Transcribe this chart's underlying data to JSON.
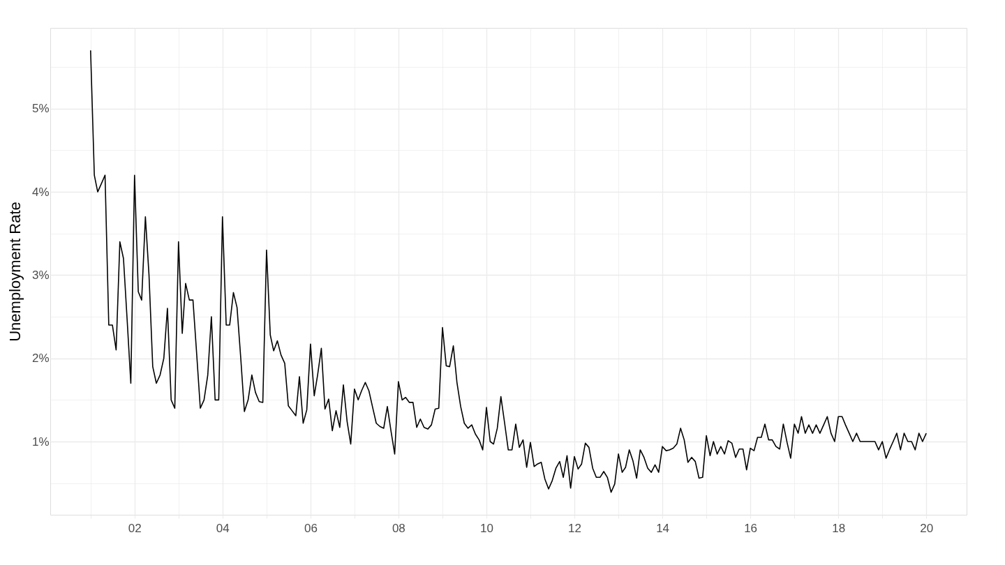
{
  "chart_data": {
    "type": "line",
    "ylabel": "Unemployment Rate",
    "x": [
      "2001-01",
      "2001-02",
      "2001-03",
      "2001-04",
      "2001-05",
      "2001-06",
      "2001-07",
      "2001-08",
      "2001-09",
      "2001-10",
      "2001-11",
      "2001-12",
      "2002-01",
      "2002-02",
      "2002-03",
      "2002-04",
      "2002-05",
      "2002-06",
      "2002-07",
      "2002-08",
      "2002-09",
      "2002-10",
      "2002-11",
      "2002-12",
      "2003-01",
      "2003-02",
      "2003-03",
      "2003-04",
      "2003-05",
      "2003-06",
      "2003-07",
      "2003-08",
      "2003-09",
      "2003-10",
      "2003-11",
      "2003-12",
      "2004-01",
      "2004-02",
      "2004-03",
      "2004-04",
      "2004-05",
      "2004-06",
      "2004-07",
      "2004-08",
      "2004-09",
      "2004-10",
      "2004-11",
      "2004-12",
      "2005-01",
      "2005-02",
      "2005-03",
      "2005-04",
      "2005-05",
      "2005-06",
      "2005-07",
      "2005-08",
      "2005-09",
      "2005-10",
      "2005-11",
      "2005-12",
      "2006-01",
      "2006-02",
      "2006-03",
      "2006-04",
      "2006-05",
      "2006-06",
      "2006-07",
      "2006-08",
      "2006-09",
      "2006-10",
      "2006-11",
      "2006-12",
      "2007-01",
      "2007-02",
      "2007-03",
      "2007-04",
      "2007-05",
      "2007-06",
      "2007-07",
      "2007-08",
      "2007-09",
      "2007-10",
      "2007-11",
      "2007-12",
      "2008-01",
      "2008-02",
      "2008-03",
      "2008-04",
      "2008-05",
      "2008-06",
      "2008-07",
      "2008-08",
      "2008-09",
      "2008-10",
      "2008-11",
      "2008-12",
      "2009-01",
      "2009-02",
      "2009-03",
      "2009-04",
      "2009-05",
      "2009-06",
      "2009-07",
      "2009-08",
      "2009-09",
      "2009-10",
      "2009-11",
      "2009-12",
      "2010-01",
      "2010-02",
      "2010-03",
      "2010-04",
      "2010-05",
      "2010-06",
      "2010-07",
      "2010-08",
      "2010-09",
      "2010-10",
      "2010-11",
      "2010-12",
      "2011-01",
      "2011-02",
      "2011-03",
      "2011-04",
      "2011-05",
      "2011-06",
      "2011-07",
      "2011-08",
      "2011-09",
      "2011-10",
      "2011-11",
      "2011-12",
      "2012-01",
      "2012-02",
      "2012-03",
      "2012-04",
      "2012-05",
      "2012-06",
      "2012-07",
      "2012-08",
      "2012-09",
      "2012-10",
      "2012-11",
      "2012-12",
      "2013-01",
      "2013-02",
      "2013-03",
      "2013-04",
      "2013-05",
      "2013-06",
      "2013-07",
      "2013-08",
      "2013-09",
      "2013-10",
      "2013-11",
      "2013-12",
      "2014-01",
      "2014-02",
      "2014-03",
      "2014-04",
      "2014-05",
      "2014-06",
      "2014-07",
      "2014-08",
      "2014-09",
      "2014-10",
      "2014-11",
      "2014-12",
      "2015-01",
      "2015-02",
      "2015-03",
      "2015-04",
      "2015-05",
      "2015-06",
      "2015-07",
      "2015-08",
      "2015-09",
      "2015-10",
      "2015-11",
      "2015-12",
      "2016-01",
      "2016-02",
      "2016-03",
      "2016-04",
      "2016-05",
      "2016-06",
      "2016-07",
      "2016-08",
      "2016-09",
      "2016-10",
      "2016-11",
      "2016-12",
      "2017-01",
      "2017-02",
      "2017-03",
      "2017-04",
      "2017-05",
      "2017-06",
      "2017-07",
      "2017-08",
      "2017-09",
      "2017-10",
      "2017-11",
      "2017-12",
      "2018-01",
      "2018-02",
      "2018-03",
      "2018-04",
      "2018-05",
      "2018-06",
      "2018-07",
      "2018-08",
      "2018-09",
      "2018-10",
      "2018-11",
      "2018-12",
      "2019-01",
      "2019-02",
      "2019-03",
      "2019-04",
      "2019-05",
      "2019-06",
      "2019-07",
      "2019-08",
      "2019-09",
      "2019-10",
      "2019-11",
      "2019-12",
      "2020-01"
    ],
    "series": [
      {
        "color": "#000000",
        "values": [
          5.7,
          4.2,
          4.0,
          4.1,
          4.2,
          2.4,
          2.4,
          2.1,
          3.4,
          3.2,
          2.45,
          1.7,
          4.2,
          2.8,
          2.7,
          3.7,
          3.0,
          1.9,
          1.7,
          1.8,
          2.0,
          2.6,
          1.5,
          1.4,
          3.4,
          2.3,
          2.9,
          2.7,
          2.7,
          2.05,
          1.4,
          1.5,
          1.8,
          2.5,
          1.5,
          1.5,
          3.7,
          2.4,
          2.4,
          2.79,
          2.61,
          2.0,
          1.36,
          1.5,
          1.8,
          1.59,
          1.48,
          1.47,
          3.3,
          2.28,
          2.09,
          2.21,
          2.04,
          1.94,
          1.43,
          1.37,
          1.31,
          1.78,
          1.22,
          1.38,
          2.17,
          1.55,
          1.8,
          2.12,
          1.39,
          1.51,
          1.13,
          1.37,
          1.17,
          1.68,
          1.24,
          0.97,
          1.63,
          1.5,
          1.61,
          1.71,
          1.61,
          1.41,
          1.22,
          1.18,
          1.16,
          1.42,
          1.12,
          0.85,
          1.72,
          1.5,
          1.53,
          1.47,
          1.47,
          1.17,
          1.27,
          1.17,
          1.15,
          1.2,
          1.39,
          1.4,
          2.37,
          1.91,
          1.9,
          2.15,
          1.71,
          1.42,
          1.22,
          1.16,
          1.2,
          1.09,
          1.02,
          0.9,
          1.41,
          1.0,
          0.97,
          1.16,
          1.54,
          1.22,
          0.9,
          0.9,
          1.21,
          0.93,
          1.02,
          0.69,
          0.99,
          0.7,
          0.73,
          0.75,
          0.55,
          0.43,
          0.53,
          0.68,
          0.76,
          0.57,
          0.83,
          0.44,
          0.82,
          0.67,
          0.73,
          0.98,
          0.93,
          0.68,
          0.57,
          0.57,
          0.64,
          0.57,
          0.39,
          0.49,
          0.85,
          0.63,
          0.69,
          0.9,
          0.77,
          0.56,
          0.9,
          0.81,
          0.68,
          0.63,
          0.72,
          0.63,
          0.94,
          0.89,
          0.9,
          0.92,
          0.97,
          1.16,
          1.02,
          0.75,
          0.81,
          0.76,
          0.56,
          0.57,
          1.07,
          0.83,
          1.0,
          0.85,
          0.94,
          0.85,
          1.01,
          0.98,
          0.81,
          0.91,
          0.91,
          0.66,
          0.92,
          0.89,
          1.05,
          1.05,
          1.21,
          1.02,
          1.02,
          0.94,
          0.91,
          1.21,
          0.99,
          0.8,
          1.21,
          1.1,
          1.3,
          1.1,
          1.2,
          1.1,
          1.2,
          1.1,
          1.2,
          1.3,
          1.1,
          1.0,
          1.3,
          1.3,
          1.2,
          1.1,
          1.0,
          1.1,
          1.0,
          1.0,
          1.0,
          1.0,
          1.0,
          0.9,
          1.0,
          0.8,
          0.9,
          1.0,
          1.1,
          0.9,
          1.1,
          1.0,
          1.0,
          0.9,
          1.1,
          1.0,
          1.1
        ]
      }
    ],
    "xlim": [
      "2000-02",
      "2020-12"
    ],
    "xticks": [
      {
        "value": "2001",
        "label": null
      },
      {
        "value": "2002",
        "label": "02"
      },
      {
        "value": "2003",
        "label": null
      },
      {
        "value": "2004",
        "label": "04"
      },
      {
        "value": "2005",
        "label": null
      },
      {
        "value": "2006",
        "label": "06"
      },
      {
        "value": "2007",
        "label": null
      },
      {
        "value": "2008",
        "label": "08"
      },
      {
        "value": "2009",
        "label": null
      },
      {
        "value": "2010",
        "label": "10"
      },
      {
        "value": "2011",
        "label": null
      },
      {
        "value": "2012",
        "label": "12"
      },
      {
        "value": "2013",
        "label": null
      },
      {
        "value": "2014",
        "label": "14"
      },
      {
        "value": "2015",
        "label": null
      },
      {
        "value": "2016",
        "label": "16"
      },
      {
        "value": "2017",
        "label": null
      },
      {
        "value": "2018",
        "label": "18"
      },
      {
        "value": "2019",
        "label": null
      },
      {
        "value": "2020",
        "label": "20"
      }
    ],
    "ylim": [
      0.12,
      5.97
    ],
    "yticks": [
      {
        "value": 0.5,
        "label": null
      },
      {
        "value": 1,
        "label": "1%"
      },
      {
        "value": 1.5,
        "label": null
      },
      {
        "value": 2,
        "label": "2%"
      },
      {
        "value": 2.5,
        "label": null
      },
      {
        "value": 3,
        "label": "3%"
      },
      {
        "value": 3.5,
        "label": null
      },
      {
        "value": 4,
        "label": "4%"
      },
      {
        "value": 4.5,
        "label": null
      },
      {
        "value": 5,
        "label": "5%"
      },
      {
        "value": 5.5,
        "label": null
      }
    ],
    "grid": true,
    "marker": "none",
    "line_style": "solid"
  }
}
